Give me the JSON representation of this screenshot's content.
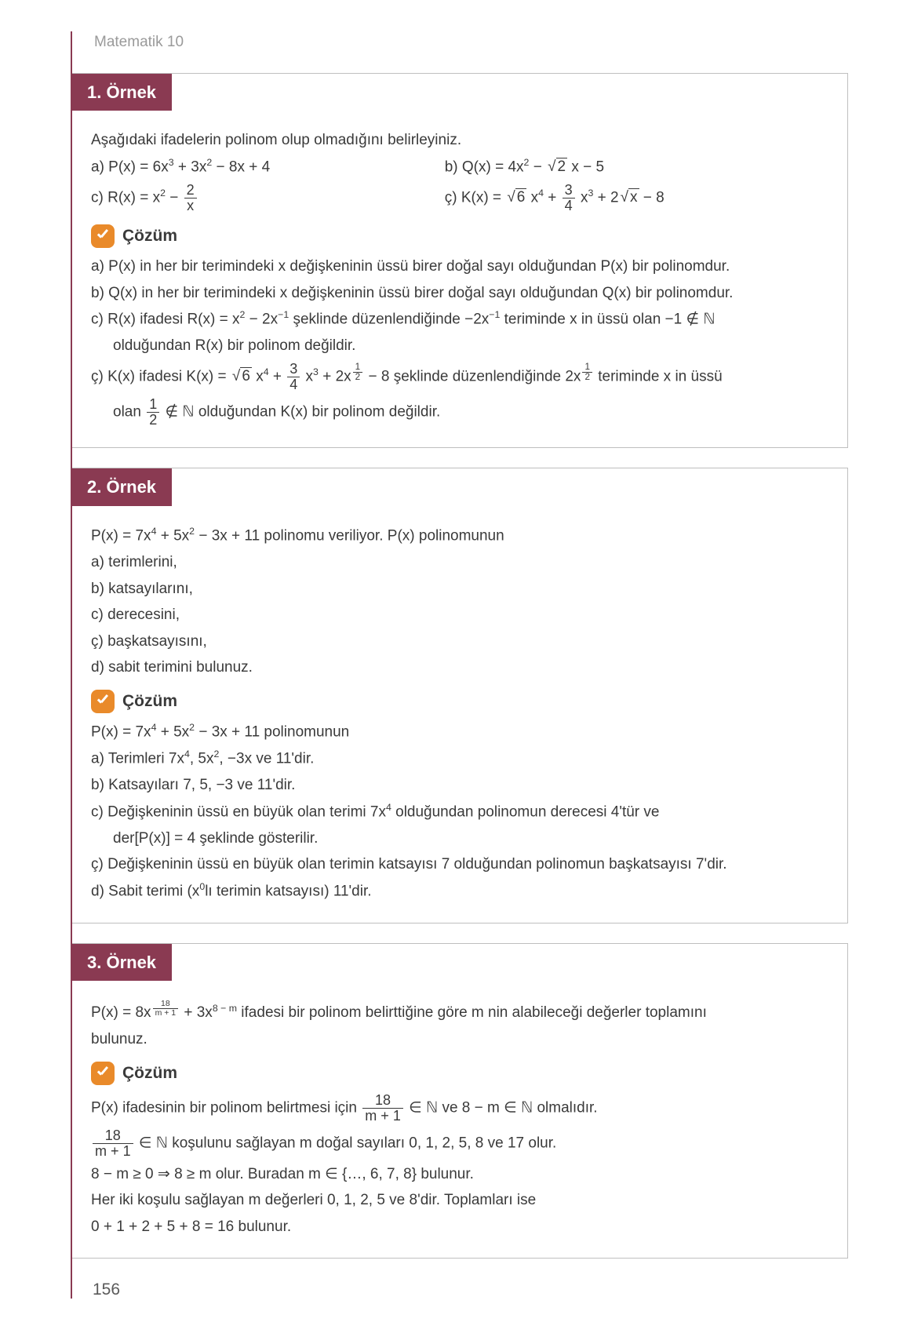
{
  "header": "Matematik 10",
  "pagenum": "156",
  "cozum_label": "Çözüm",
  "ex1": {
    "title": "1. Örnek",
    "prompt": "Aşağıdaki ifadelerin polinom olup olmadığını belirleyiniz.",
    "a_pre": "a) P(x) = 6x",
    "a_rest": " + 3x",
    "a_rest2": " − 8x + 4",
    "b_pre": "b) Q(x) =  4x",
    "b_rest": " − ",
    "b_rest2": " x − 5",
    "c_pre": "c) R(x) =  x",
    "c_rest": " − ",
    "cc_pre": "ç) K(x) =  ",
    "cc_mid": " x",
    "cc_mid2": " + ",
    "cc_mid3": " x",
    "cc_mid4": " + 2",
    "cc_end": " − 8",
    "sol_a": "a)  P(x) in her bir terimindeki x değişkeninin üssü birer doğal sayı olduğundan P(x) bir polinomdur.",
    "sol_b": "b)  Q(x) in her bir terimindeki x değişkeninin üssü birer doğal sayı olduğundan Q(x) bir polinomdur.",
    "sol_c_1": "c)  R(x) ifadesi R(x) = x",
    "sol_c_2": " − 2x",
    "sol_c_3": " şeklinde düzenlendiğinde −2x",
    "sol_c_4": " teriminde x in üssü olan −1 ∉ ",
    "sol_c_5": "olduğundan R(x) bir polinom değildir.",
    "sol_cc_1": "ç)  K(x) ifadesi K(x) = ",
    "sol_cc_2": " x",
    "sol_cc_3": " + ",
    "sol_cc_4": " x",
    "sol_cc_5": " + 2x",
    "sol_cc_6": " − 8",
    "sol_cc_7": "  şeklinde düzenlendiğinde  2x",
    "sol_cc_8": "  teriminde x in üssü",
    "sol_cc_9": "olan  ",
    "sol_cc_10": "  ∉ ",
    "sol_cc_11": " olduğundan K(x) bir polinom değildir."
  },
  "ex2": {
    "title": "2. Örnek",
    "p1_pre": "P(x) = 7x",
    "p1_mid": " + 5x",
    "p1_end": " − 3x + 11 polinomu veriliyor. P(x) polinomunun",
    "a": "a)  terimlerini,",
    "b": "b)  katsayılarını,",
    "c": "c)  derecesini,",
    "cc": "ç)  başkatsayısını,",
    "d": "d)  sabit terimini bulunuz.",
    "s1_pre": "P(x) = 7x",
    "s1_mid": " + 5x",
    "s1_end": " − 3x + 11 polinomunun",
    "sa_pre": "a)  Terimleri 7x",
    "sa_mid": ", 5x",
    "sa_end": ", −3x ve 11'dir.",
    "sb": "b)  Katsayıları 7, 5, −3 ve 11'dir.",
    "sc_pre": "c)  Değişkeninin üssü en büyük olan terimi 7x",
    "sc_end": " olduğundan polinomun derecesi 4'tür ve",
    "sc2": "der[P(x)] = 4 şeklinde gösterilir.",
    "scc": "ç)  Değişkeninin üssü en büyük olan terimin katsayısı 7 olduğundan polinomun başkatsayısı 7'dir.",
    "sd_pre": "d)  Sabit terimi (x",
    "sd_end": "lı terimin katsayısı) 11'dir."
  },
  "ex3": {
    "title": "3. Örnek",
    "p_pre": "P(x) = 8x",
    "p_mid": " + 3x",
    "p_end": "  ifadesi bir polinom belirttiğine göre m nin alabileceği değerler toplamını",
    "p_end2": "bulunuz.",
    "s1_pre": "P(x) ifadesinin bir polinom belirtmesi için  ",
    "s1_mid": "  ∈ ",
    "s1_mid2": " ve 8 − m ∈ ",
    "s1_end": " olmalıdır.",
    "s2_mid": "  ∈ ",
    "s2_end": " koşulunu sağlayan m doğal sayıları 0, 1, 2, 5, 8 ve 17 olur.",
    "s3": "8 − m ≥ 0 ⇒ 8 ≥ m olur. Buradan m ∈ {…, 6, 7, 8} bulunur.",
    "s4": "Her iki koşulu sağlayan m değerleri 0, 1, 2, 5 ve 8'dir. Toplamları ise",
    "s5": "0 + 1 + 2 + 5 + 8 = 16 bulunur."
  },
  "frac": {
    "two": "2",
    "x": "x",
    "three": "3",
    "four": "4",
    "one": "1",
    "eighteen": "18",
    "mp1": "m + 1",
    "half_n": "1",
    "half_d": "2"
  },
  "exp": {
    "three": "3",
    "two": "2",
    "four": "4",
    "neg1": "−1",
    "zero": "0",
    "eightm": "8 − m",
    "half_n": "1",
    "half_d": "2"
  },
  "rad": {
    "two": "2",
    "six": "6",
    "x": "x"
  },
  "natn": "ℕ"
}
